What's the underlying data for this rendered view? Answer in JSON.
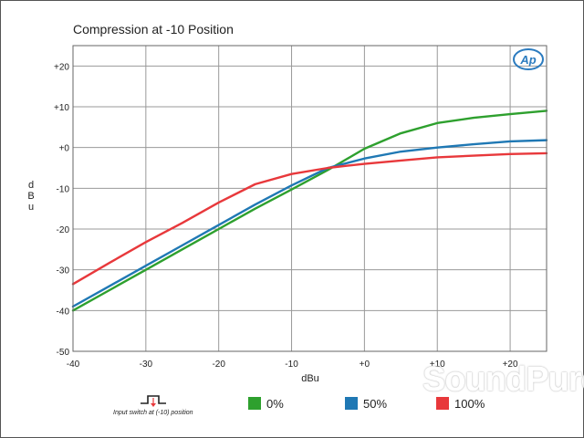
{
  "chart_data": {
    "type": "line",
    "title": "Compression at -10 Position",
    "xlabel": "dBu",
    "ylabel": "dBu",
    "xlim": [
      -40,
      25
    ],
    "ylim": [
      -50,
      25
    ],
    "xticks": [
      -40,
      -30,
      -20,
      -10,
      0,
      10,
      20
    ],
    "xtick_labels": [
      "-40",
      "-30",
      "-20",
      "-10",
      "+0",
      "+10",
      "+20"
    ],
    "yticks": [
      20,
      10,
      0,
      -10,
      -20,
      -30,
      -40,
      -50
    ],
    "ytick_labels": [
      "+20",
      "+10",
      "+0",
      "-10",
      "-20",
      "-30",
      "-40",
      "-50"
    ],
    "grid": true,
    "series": [
      {
        "name": "0%",
        "color": "#2ea02e",
        "x": [
          -40,
          -35,
          -30,
          -25,
          -20,
          -15,
          -10,
          -5,
          0,
          5,
          10,
          15,
          20,
          25
        ],
        "y": [
          -40,
          -35,
          -30,
          -25,
          -20,
          -15,
          -10.3,
          -5.5,
          -0.3,
          3.5,
          6,
          7.3,
          8.2,
          9
        ]
      },
      {
        "name": "50%",
        "color": "#1f78b4",
        "x": [
          -40,
          -35,
          -30,
          -25,
          -20,
          -15,
          -10,
          -5,
          0,
          5,
          10,
          15,
          20,
          25
        ],
        "y": [
          -39,
          -34,
          -29,
          -24,
          -19,
          -14,
          -9.3,
          -5,
          -2.7,
          -1,
          0,
          0.8,
          1.5,
          1.8
        ]
      },
      {
        "name": "100%",
        "color": "#e8383b",
        "x": [
          -40,
          -35,
          -30,
          -25,
          -20,
          -15,
          -10,
          -5,
          0,
          5,
          10,
          15,
          20,
          25
        ],
        "y": [
          -33.5,
          -28.3,
          -23.2,
          -18.5,
          -13.5,
          -9,
          -6.5,
          -5,
          -4,
          -3.2,
          -2.4,
          -2,
          -1.6,
          -1.4
        ]
      }
    ]
  },
  "legend_caption": "Input switch at (-10) position",
  "logo_text": "Ap",
  "watermark_text": "SoundPure",
  "colors": {
    "grid": "#999999",
    "plot_bg": "#ffffff"
  }
}
